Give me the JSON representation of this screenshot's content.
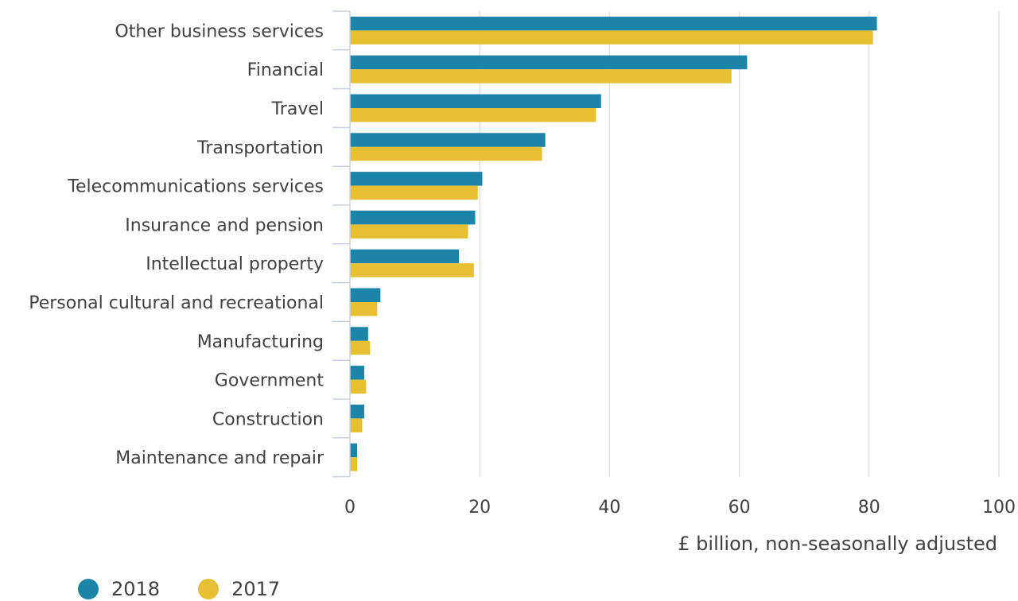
{
  "chart_data": {
    "type": "bar",
    "orientation": "horizontal",
    "categories": [
      "Other business services",
      "Financial",
      "Travel",
      "Transportation",
      "Telecommunications services",
      "Insurance and pension",
      "Intellectual property",
      "Personal cultural and recreational",
      "Manufacturing",
      "Government",
      "Construction",
      "Maintenance and repair"
    ],
    "series": [
      {
        "name": "2018",
        "color": "#1b84a8",
        "values": [
          81.2,
          61.2,
          38.7,
          30.1,
          20.4,
          19.3,
          16.8,
          4.7,
          2.8,
          2.2,
          2.2,
          1.1
        ]
      },
      {
        "name": "2017",
        "color": "#e6c032",
        "values": [
          80.6,
          58.8,
          37.9,
          29.6,
          19.7,
          18.2,
          19.1,
          4.2,
          3.1,
          2.5,
          1.9,
          1.1
        ]
      }
    ],
    "xlabel": "£ billion, non-seasonally adjusted",
    "ylabel": "",
    "xlim": [
      0,
      100
    ],
    "xticks": [
      "0",
      "20",
      "40",
      "60",
      "80",
      "100"
    ],
    "grid": true,
    "legend_position": "bottom-left"
  }
}
